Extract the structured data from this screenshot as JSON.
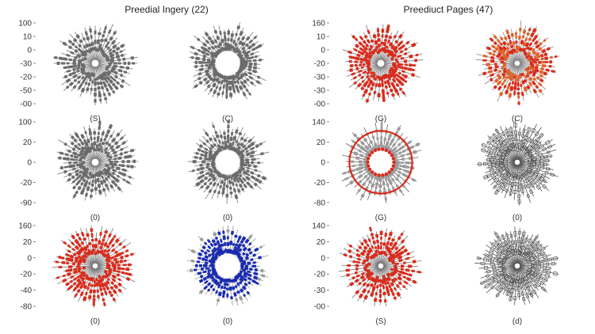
{
  "chart_data": {
    "type": "radial-dot-plot",
    "panel_titles": [
      "Preedial Ingery (22)",
      "Preediuct Pages (47)"
    ],
    "colors": {
      "gray": "#6b6b6b",
      "red": "#d92b1c",
      "orange": "#e0632a",
      "blue": "#1a2bb0",
      "light_gray": "#9b9b9b",
      "dark": "#444444"
    },
    "charts": [
      {
        "row": 0,
        "col": 0,
        "label": "(S)",
        "style": "gray",
        "spokes": 44,
        "hole": 0.08,
        "ticks": [
          "100",
          "10",
          "0",
          "-30",
          "-20",
          "-50",
          "-00"
        ]
      },
      {
        "row": 0,
        "col": 1,
        "label": "(C)",
        "style": "gray",
        "spokes": 48,
        "hole": 0.28,
        "ticks": []
      },
      {
        "row": 0,
        "col": 2,
        "label": "(G)",
        "style": "red",
        "spokes": 44,
        "hole": 0.08,
        "ticks": [
          "160",
          "10",
          "0",
          "-20",
          "-30",
          "-30",
          "-00"
        ]
      },
      {
        "row": 0,
        "col": 3,
        "label": "(C)",
        "style": "orange",
        "spokes": 48,
        "hole": 0.06,
        "ticks": []
      },
      {
        "row": 1,
        "col": 0,
        "label": "(0)",
        "style": "gray",
        "spokes": 44,
        "hole": 0.08,
        "ticks": [
          "100",
          "20",
          "0",
          "-20",
          "-90"
        ]
      },
      {
        "row": 1,
        "col": 1,
        "label": "(0)",
        "style": "gray",
        "spokes": 48,
        "hole": 0.28,
        "ticks": []
      },
      {
        "row": 1,
        "col": 2,
        "label": "(G)",
        "style": "ring",
        "spokes": 40,
        "hole": 0.3,
        "ticks": [
          "140",
          "20",
          "0",
          "-20",
          "-80"
        ]
      },
      {
        "row": 1,
        "col": 3,
        "label": "(0)",
        "style": "outline",
        "spokes": 48,
        "hole": 0.06,
        "ticks": []
      },
      {
        "row": 2,
        "col": 0,
        "label": "(0)",
        "style": "red",
        "spokes": 46,
        "hole": 0.06,
        "ticks": [
          "160",
          "20",
          "0",
          "-20",
          "-40",
          "-80"
        ]
      },
      {
        "row": 2,
        "col": 1,
        "label": "(0)",
        "style": "blue",
        "spokes": 48,
        "hole": 0.28,
        "ticks": []
      },
      {
        "row": 2,
        "col": 2,
        "label": "(S)",
        "style": "red",
        "spokes": 44,
        "hole": 0.06,
        "ticks": [
          "140",
          "20",
          "0",
          "-20",
          "-30",
          "-00"
        ]
      },
      {
        "row": 2,
        "col": 3,
        "label": "(d)",
        "style": "outline",
        "spokes": 48,
        "hole": 0.06,
        "ticks": []
      }
    ]
  }
}
